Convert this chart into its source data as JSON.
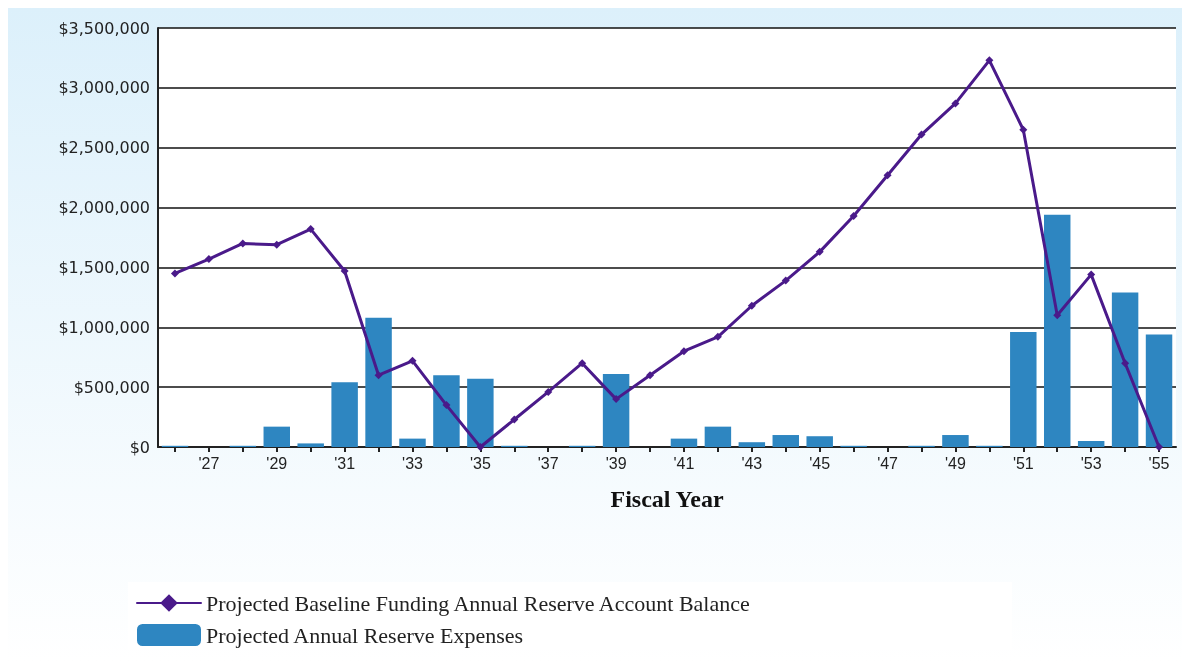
{
  "chart_data": {
    "type": "bar",
    "xlabel": "Fiscal Year",
    "categories": [
      null,
      "'27",
      null,
      "'29",
      null,
      "'31",
      null,
      "'33",
      null,
      "'35",
      null,
      "'37",
      null,
      "'39",
      null,
      "'41",
      null,
      "'43",
      null,
      "'45",
      null,
      "'47",
      null,
      "'49",
      null,
      "'51",
      null,
      "'53",
      null,
      "'55"
    ],
    "series": [
      {
        "name": "Projected Baseline Funding Annual Reserve Account Balance",
        "type": "line",
        "color": "#4a1a8a",
        "values": [
          1450000,
          1570000,
          1700000,
          1690000,
          1820000,
          1470000,
          600000,
          720000,
          350000,
          0,
          230000,
          460000,
          700000,
          400000,
          600000,
          800000,
          920000,
          1180000,
          1390000,
          1630000,
          1930000,
          2270000,
          2610000,
          2870000,
          3230000,
          2650000,
          1100000,
          1440000,
          700000,
          0
        ]
      },
      {
        "name": "Projected Annual Reserve Expenses",
        "color": "#2e86c1",
        "values": [
          10000,
          0,
          10000,
          170000,
          30000,
          540000,
          1080000,
          70000,
          600000,
          570000,
          10000,
          0,
          10000,
          610000,
          0,
          70000,
          170000,
          40000,
          100000,
          90000,
          10000,
          0,
          10000,
          100000,
          10000,
          960000,
          1940000,
          50000,
          1290000,
          940000
        ]
      }
    ],
    "ylim": [
      0,
      3500000
    ],
    "yticks": [
      {
        "value": 0,
        "label": "$0"
      },
      {
        "value": 500000,
        "label": "$500,000"
      },
      {
        "value": 1000000,
        "label": "$1,000,000"
      },
      {
        "value": 1500000,
        "label": "$1,500,000"
      },
      {
        "value": 2000000,
        "label": "$2,000,000"
      },
      {
        "value": 2500000,
        "label": "$2,500,000"
      },
      {
        "value": 3000000,
        "label": "$3,000,000"
      },
      {
        "value": 3500000,
        "label": "$3,500,000"
      }
    ],
    "grid": "y",
    "legend": "bottom",
    "marker": "diamond",
    "line_style": "solid"
  }
}
